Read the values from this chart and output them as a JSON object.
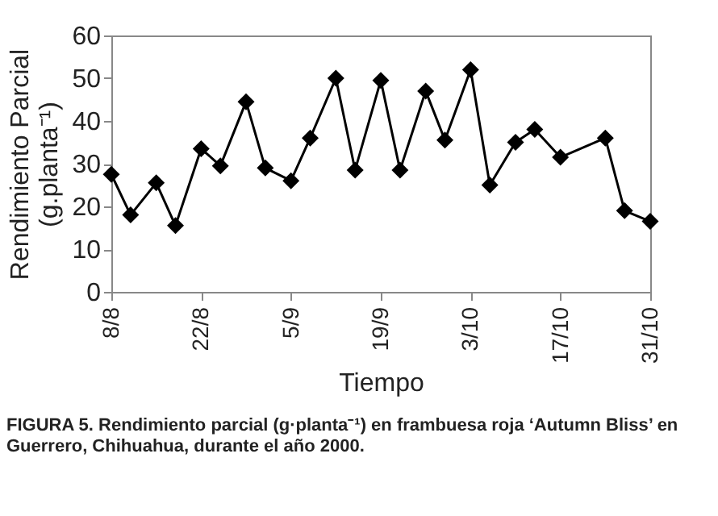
{
  "chart_data": {
    "type": "line",
    "xlabel": "Tiempo",
    "ylabel": "Rendimiento Parcial\n(g.planta⁻¹)",
    "annotations": [
      "FIGURA 5. Rendimiento parcial (g·planta⁻¹) en frambuesa roja ‘Autumn Bliss’ en Guerrero, Chihuahua, durante el año 2000."
    ],
    "x": [
      "2000-08-08",
      "2000-08-11",
      "2000-08-15",
      "2000-08-18",
      "2000-08-22",
      "2000-08-25",
      "2000-08-29",
      "2000-09-01",
      "2000-09-05",
      "2000-09-08",
      "2000-09-12",
      "2000-09-15",
      "2000-09-19",
      "2000-09-22",
      "2000-09-26",
      "2000-09-29",
      "2000-10-03",
      "2000-10-06",
      "2000-10-10",
      "2000-10-13",
      "2000-10-17",
      "2000-10-24",
      "2000-10-27",
      "2000-10-31"
    ],
    "series": [
      {
        "color": "#000000",
        "values": [
          27.5,
          18,
          25.5,
          15.5,
          33.5,
          29.5,
          44.5,
          29,
          26,
          36,
          50,
          28.5,
          49.5,
          28.5,
          47,
          35.5,
          52,
          25,
          35,
          38,
          31.5,
          36,
          19,
          16.5
        ]
      }
    ],
    "xlim": [
      "2000-08-08",
      "2000-10-31"
    ],
    "xticks": [
      {
        "value": "2000-08-08",
        "label": "8/8"
      },
      {
        "value": "2000-08-22",
        "label": "22/8"
      },
      {
        "value": "2000-09-05",
        "label": "5/9"
      },
      {
        "value": "2000-09-19",
        "label": "19/9"
      },
      {
        "value": "2000-10-03",
        "label": "3/10"
      },
      {
        "value": "2000-10-17",
        "label": "17/10"
      },
      {
        "value": "2000-10-31",
        "label": "31/10"
      }
    ],
    "ylim": [
      0,
      60
    ],
    "yticks": [
      0,
      10,
      20,
      30,
      40,
      50,
      60
    ],
    "grid": false,
    "legend": false,
    "marker": "diamond",
    "line_style": "solid"
  }
}
